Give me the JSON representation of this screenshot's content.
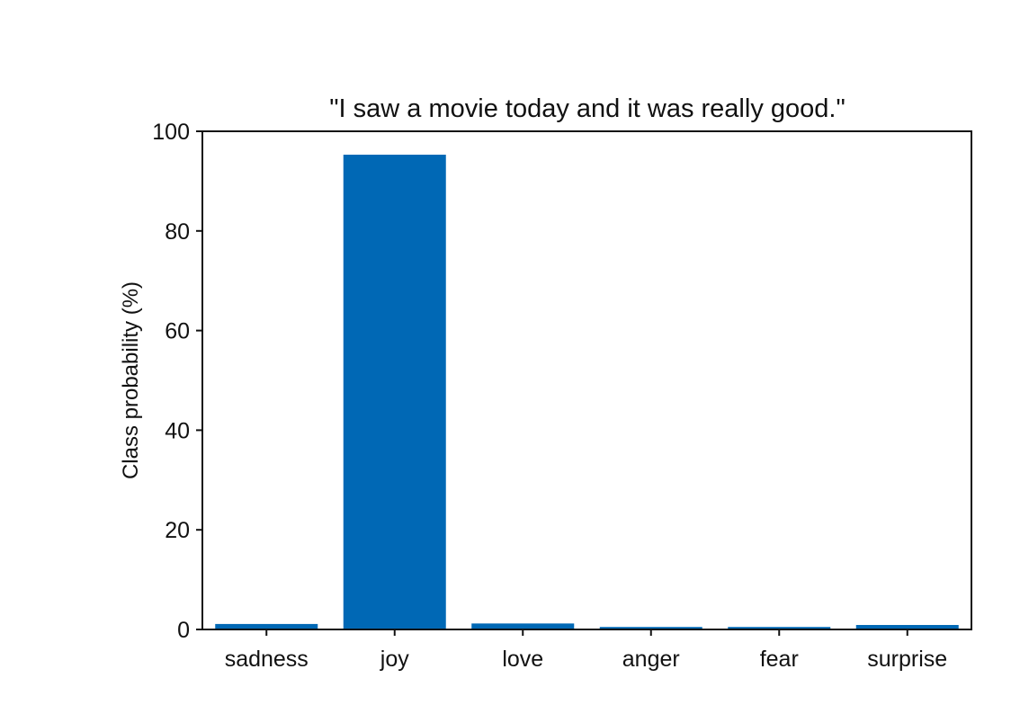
{
  "chart_data": {
    "type": "bar",
    "title": "\"I saw a movie today and it was really good.\"",
    "xlabel": "",
    "ylabel": "Class probability (%)",
    "categories": [
      "sadness",
      "joy",
      "love",
      "anger",
      "fear",
      "surprise"
    ],
    "values": [
      1.1,
      95.3,
      1.2,
      0.5,
      0.5,
      0.9
    ],
    "ylim": [
      0,
      100
    ],
    "yticks": [
      "0",
      "20",
      "40",
      "60",
      "80",
      "100"
    ],
    "grid": false,
    "legend": "none",
    "colors": {
      "bar": "#0068b5",
      "axis": "#111111"
    }
  }
}
